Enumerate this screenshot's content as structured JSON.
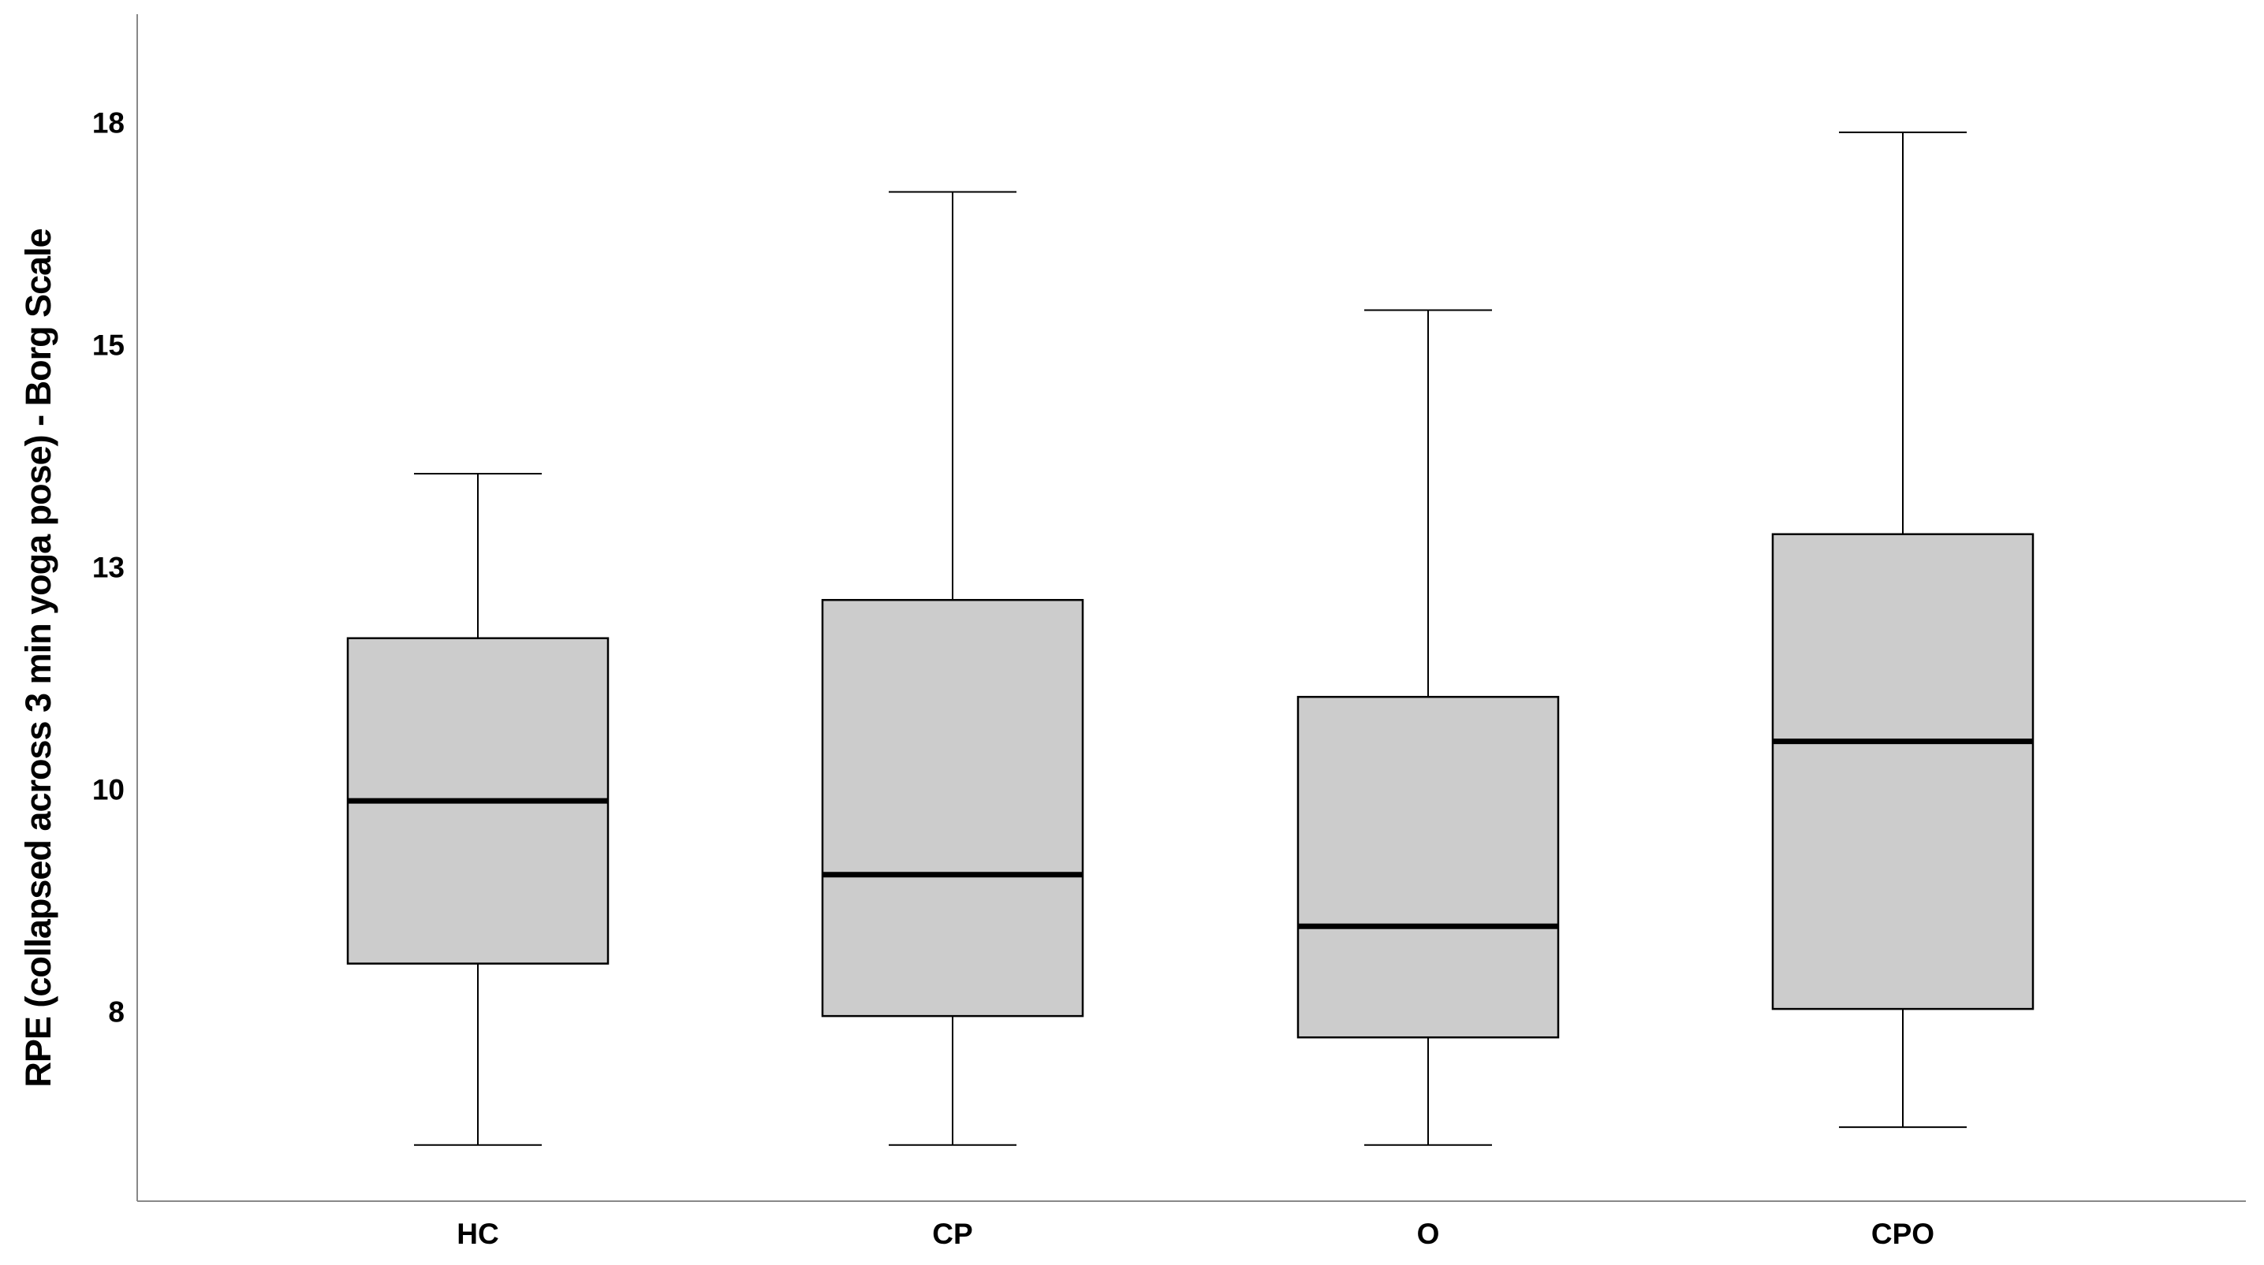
{
  "chart_data": {
    "type": "boxplot",
    "title": "",
    "xlabel": "",
    "ylabel": "RPE (collapsed across 3 min yoga pose) - Borg Scale",
    "categories": [
      "HC",
      "CP",
      "O",
      "CPO"
    ],
    "yticks": [
      7.5,
      10,
      12.5,
      15,
      17.5
    ],
    "ytick_labels": [
      "8",
      "10",
      "13",
      "15",
      "18"
    ],
    "ylim": [
      5.4,
      19.5
    ],
    "grid": false,
    "box_color": "#cccccc",
    "boxes": [
      {
        "name": "HC",
        "whisker_low": 6.0,
        "q1": 8.04,
        "median": 9.87,
        "q3": 11.7,
        "whisker_high": 13.55
      },
      {
        "name": "CP",
        "whisker_low": 6.0,
        "q1": 7.45,
        "median": 9.04,
        "q3": 12.13,
        "whisker_high": 16.72
      },
      {
        "name": "O",
        "whisker_low": 6.0,
        "q1": 7.21,
        "median": 8.46,
        "q3": 11.04,
        "whisker_high": 15.39
      },
      {
        "name": "CPO",
        "whisker_low": 6.2,
        "q1": 7.53,
        "median": 10.54,
        "q3": 12.87,
        "whisker_high": 17.39
      }
    ]
  }
}
